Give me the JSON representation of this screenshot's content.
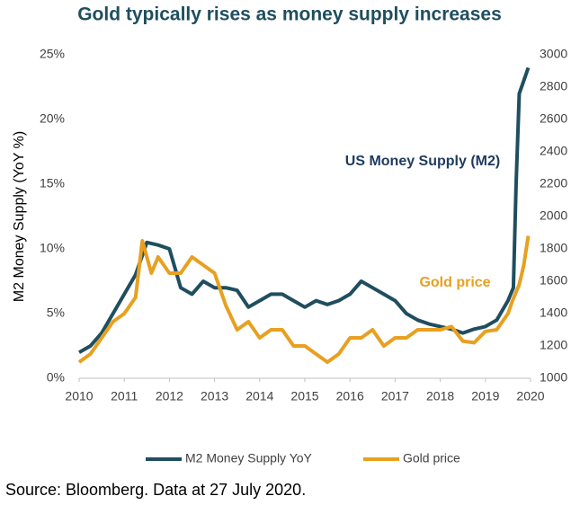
{
  "chart_data": {
    "type": "line",
    "title": "Gold typically rises as money supply increases",
    "ylabel": "M2 Money Supply (YoY %)",
    "source": "Source: Bloomberg. Data at 27 July 2020.",
    "annotations": [
      "US Money Supply (M2)",
      "Gold price"
    ],
    "legend": "bottom",
    "xlim": [
      2010,
      2020
    ],
    "xticks": [
      2010,
      2011,
      2012,
      2013,
      2014,
      2015,
      2016,
      2017,
      2018,
      2019,
      2020
    ],
    "ylim": [
      0,
      25
    ],
    "yticks": [
      {
        "value": 0,
        "label": "0%"
      },
      {
        "value": 5,
        "label": "5%"
      },
      {
        "value": 10,
        "label": "10%"
      },
      {
        "value": 15,
        "label": "15%"
      },
      {
        "value": 20,
        "label": "20%"
      },
      {
        "value": 25,
        "label": "25%"
      }
    ],
    "y2lim": [
      1000,
      3000
    ],
    "y2ticks": [
      1000,
      1200,
      1400,
      1600,
      1800,
      2000,
      2200,
      2400,
      2600,
      2800,
      3000
    ],
    "series": [
      {
        "name": "M2 Money Supply YoY",
        "color": "#1f4e5f",
        "axis": "y",
        "x": [
          2010,
          2010.25,
          2010.5,
          2010.75,
          2011,
          2011.25,
          2011.5,
          2011.75,
          2012,
          2012.25,
          2012.5,
          2012.75,
          2013,
          2013.25,
          2013.5,
          2013.75,
          2014,
          2014.25,
          2014.5,
          2014.75,
          2015,
          2015.25,
          2015.5,
          2015.75,
          2016,
          2016.25,
          2016.5,
          2016.75,
          2017,
          2017.25,
          2017.5,
          2017.75,
          2018,
          2018.25,
          2018.5,
          2018.75,
          2019,
          2019.25,
          2019.5,
          2019.62,
          2019.68,
          2019.75,
          2019.85,
          2019.95
        ],
        "values": [
          2.0,
          2.5,
          3.5,
          5.0,
          6.5,
          8.0,
          10.5,
          10.3,
          10.0,
          7.0,
          6.5,
          7.5,
          7.0,
          7.0,
          6.8,
          5.5,
          6.0,
          6.5,
          6.5,
          6.0,
          5.5,
          6.0,
          5.7,
          6.0,
          6.5,
          7.5,
          7.0,
          6.5,
          6.0,
          5.0,
          4.5,
          4.2,
          4.0,
          3.8,
          3.5,
          3.8,
          4.0,
          4.5,
          6.0,
          7.0,
          15,
          22,
          23,
          24
        ]
      },
      {
        "name": "Gold price",
        "color": "#e8a020",
        "axis": "y2",
        "x": [
          2010,
          2010.25,
          2010.5,
          2010.75,
          2011,
          2011.25,
          2011.4,
          2011.6,
          2011.75,
          2012,
          2012.25,
          2012.5,
          2012.75,
          2013,
          2013.25,
          2013.5,
          2013.75,
          2014,
          2014.25,
          2014.5,
          2014.75,
          2015,
          2015.25,
          2015.5,
          2015.75,
          2016,
          2016.25,
          2016.5,
          2016.75,
          2017,
          2017.25,
          2017.5,
          2017.75,
          2018,
          2018.25,
          2018.5,
          2018.75,
          2019,
          2019.25,
          2019.5,
          2019.6,
          2019.75,
          2019.85,
          2019.95
        ],
        "values": [
          1100,
          1150,
          1250,
          1350,
          1400,
          1500,
          1850,
          1650,
          1750,
          1650,
          1650,
          1750,
          1700,
          1650,
          1450,
          1300,
          1350,
          1250,
          1300,
          1300,
          1200,
          1200,
          1150,
          1100,
          1150,
          1250,
          1250,
          1300,
          1200,
          1250,
          1250,
          1300,
          1300,
          1300,
          1320,
          1230,
          1220,
          1290,
          1300,
          1400,
          1480,
          1580,
          1700,
          1880
        ]
      }
    ]
  }
}
